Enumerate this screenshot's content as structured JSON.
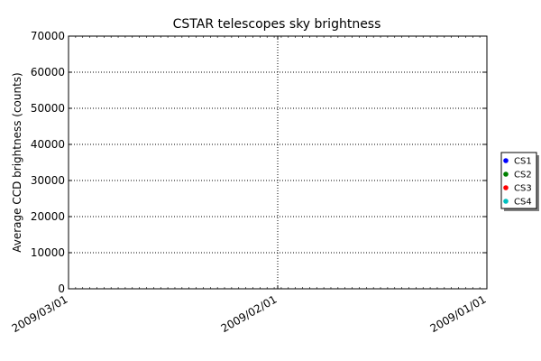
{
  "chart_data": {
    "type": "scatter",
    "title": "CSTAR telescopes sky brightness",
    "xlabel": "",
    "ylabel": "Average CCD brightness (counts)",
    "ylim": [
      0,
      70000
    ],
    "yticks": [
      0,
      10000,
      20000,
      30000,
      40000,
      50000,
      60000,
      70000
    ],
    "xticks": [
      "2009/03/01",
      "2009/02/01",
      "2009/01/01"
    ],
    "grid": true,
    "legend_position": "right",
    "series": [
      {
        "name": "CS1",
        "color": "#0000ff",
        "values": []
      },
      {
        "name": "CS2",
        "color": "#008000",
        "values": []
      },
      {
        "name": "CS3",
        "color": "#ff0000",
        "values": []
      },
      {
        "name": "CS4",
        "color": "#00bfbf",
        "values": []
      }
    ]
  }
}
